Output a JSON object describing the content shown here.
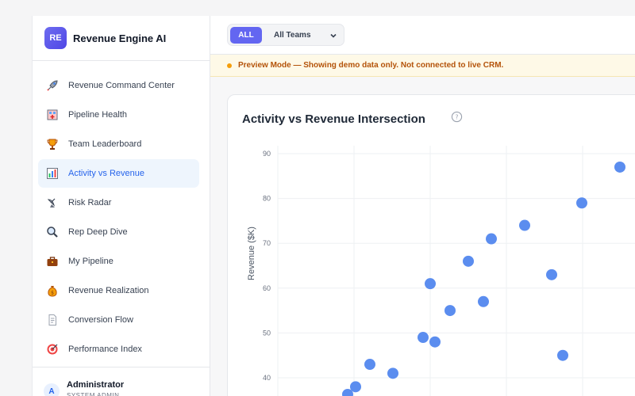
{
  "brand": {
    "logo_text": "RE",
    "name": "Revenue Engine AI"
  },
  "sidebar": {
    "items": [
      {
        "label": "Revenue Command Center",
        "icon": "rocket-icon",
        "active": false
      },
      {
        "label": "Pipeline Health",
        "icon": "hospital-icon",
        "active": false
      },
      {
        "label": "Team Leaderboard",
        "icon": "trophy-icon",
        "active": false
      },
      {
        "label": "Activity vs Revenue",
        "icon": "bar-chart-icon",
        "active": true
      },
      {
        "label": "Risk Radar",
        "icon": "satellite-dish-icon",
        "active": false
      },
      {
        "label": "Rep Deep Dive",
        "icon": "magnifier-icon",
        "active": false
      },
      {
        "label": "My Pipeline",
        "icon": "briefcase-icon",
        "active": false
      },
      {
        "label": "Revenue Realization",
        "icon": "money-bag-icon",
        "active": false
      },
      {
        "label": "Conversion Flow",
        "icon": "document-icon",
        "active": false
      },
      {
        "label": "Performance Index",
        "icon": "target-icon",
        "active": false
      }
    ]
  },
  "user": {
    "initial": "A",
    "name": "Administrator",
    "role": "SYSTEM ADMIN"
  },
  "topbar": {
    "all_label": "ALL",
    "team_select": "All Teams"
  },
  "banner": {
    "text": "Preview Mode — Showing demo data only. Not connected to live CRM."
  },
  "card": {
    "title": "Activity vs Revenue Intersection"
  },
  "colors": {
    "accent": "#6366f1",
    "point": "#5b8def",
    "active_bg": "#eef5fd",
    "banner_text": "#b45309"
  },
  "chart_data": {
    "type": "scatter",
    "ylabel": "Revenue ($K)",
    "ylim": [
      40,
      90
    ],
    "yticks": [
      90,
      80,
      70,
      60,
      50,
      40
    ],
    "grid": true,
    "points": [
      {
        "x": 1,
        "y": 36.3
      },
      {
        "x": 2,
        "y": 38.0
      },
      {
        "x": 3,
        "y": 43.0
      },
      {
        "x": 4,
        "y": 41.0
      },
      {
        "x": 5,
        "y": 49.0
      },
      {
        "x": 6,
        "y": 61.0
      },
      {
        "x": 7,
        "y": 48.0
      },
      {
        "x": 8,
        "y": 55.0
      },
      {
        "x": 9,
        "y": 66.0
      },
      {
        "x": 10,
        "y": 57.0
      },
      {
        "x": 11,
        "y": 71.0
      },
      {
        "x": 12,
        "y": 74.0
      },
      {
        "x": 13,
        "y": 63.0
      },
      {
        "x": 14,
        "y": 45.0
      },
      {
        "x": 15,
        "y": 79.0
      },
      {
        "x": 16,
        "y": 87.0
      }
    ]
  }
}
